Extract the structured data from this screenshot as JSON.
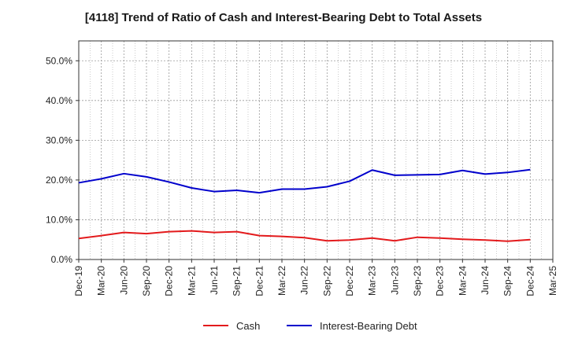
{
  "chart_data": {
    "type": "line",
    "title": "[4118]  Trend of Ratio of Cash and Interest-Bearing Debt to Total Assets",
    "xlabel": "",
    "ylabel": "",
    "ylim": [
      0,
      55
    ],
    "yticks": [
      "0.0%",
      "10.0%",
      "20.0%",
      "30.0%",
      "40.0%",
      "50.0%"
    ],
    "ytick_values": [
      0,
      10,
      20,
      30,
      40,
      50
    ],
    "categories": [
      "Dec-19",
      "Mar-20",
      "Jun-20",
      "Sep-20",
      "Dec-20",
      "Mar-21",
      "Jun-21",
      "Sep-21",
      "Dec-21",
      "Mar-22",
      "Jun-22",
      "Sep-22",
      "Dec-22",
      "Mar-23",
      "Jun-23",
      "Sep-23",
      "Dec-23",
      "Mar-24",
      "Jun-24",
      "Sep-24",
      "Dec-24",
      "Mar-25"
    ],
    "grid": true,
    "legend_position": "bottom",
    "series": [
      {
        "name": "Cash",
        "color": "#e31a1c",
        "values": [
          5.3,
          6.0,
          6.8,
          6.5,
          7.0,
          7.2,
          6.8,
          7.0,
          6.0,
          5.8,
          5.5,
          4.7,
          4.9,
          5.4,
          4.7,
          5.6,
          5.4,
          5.1,
          4.9,
          4.6,
          5.0,
          null
        ]
      },
      {
        "name": "Interest-Bearing Debt",
        "color": "#0000cc",
        "values": [
          19.3,
          20.3,
          21.6,
          20.8,
          19.5,
          18.0,
          17.1,
          17.4,
          16.8,
          17.7,
          17.7,
          18.3,
          19.7,
          22.5,
          21.2,
          21.3,
          21.4,
          22.4,
          21.5,
          21.9,
          22.6,
          null
        ]
      }
    ]
  }
}
